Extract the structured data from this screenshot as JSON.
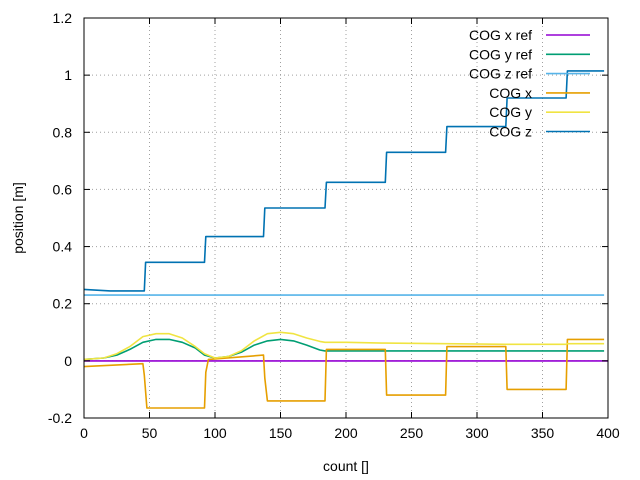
{
  "chart_data": {
    "type": "line",
    "title": "",
    "xlabel": "count []",
    "ylabel": "position [m]",
    "xlim": [
      0,
      400
    ],
    "ylim": [
      -0.2,
      1.2
    ],
    "grid": true,
    "legend_position": "top-right",
    "x_ticks": [
      "0",
      "50",
      "100",
      "150",
      "200",
      "250",
      "300",
      "350",
      "400"
    ],
    "y_ticks": [
      "-0.2",
      "0",
      "0.2",
      "0.4",
      "0.6",
      "0.8",
      "1",
      "1.2"
    ],
    "series": [
      {
        "name": "COG x ref",
        "color": "#9400d3",
        "x": [
          0,
          400
        ],
        "y": [
          0,
          0
        ]
      },
      {
        "name": "COG y ref",
        "color": "#009e73",
        "x": [
          0,
          15,
          25,
          35,
          45,
          55,
          65,
          75,
          85,
          92,
          100,
          110,
          120,
          130,
          140,
          150,
          160,
          170,
          180,
          184,
          200,
          250,
          300,
          350,
          397
        ],
        "y": [
          0.005,
          0.01,
          0.02,
          0.04,
          0.065,
          0.075,
          0.075,
          0.065,
          0.045,
          0.02,
          0.01,
          0.015,
          0.03,
          0.055,
          0.07,
          0.075,
          0.07,
          0.055,
          0.038,
          0.035,
          0.035,
          0.035,
          0.035,
          0.035,
          0.035
        ]
      },
      {
        "name": "COG z ref",
        "color": "#56b4e9",
        "x": [
          0,
          397
        ],
        "y": [
          0.23,
          0.23
        ]
      },
      {
        "name": "COG x",
        "color": "#e69f00",
        "x": [
          0,
          45,
          46,
          48,
          92,
          93,
          95,
          137,
          138,
          140,
          184,
          185,
          230,
          231,
          276,
          277,
          322,
          323,
          368,
          369,
          397
        ],
        "y": [
          -0.02,
          -0.01,
          -0.05,
          -0.165,
          -0.165,
          -0.04,
          0.005,
          0.02,
          -0.06,
          -0.14,
          -0.14,
          0.04,
          0.04,
          -0.12,
          -0.12,
          0.05,
          0.05,
          -0.1,
          -0.1,
          0.075,
          0.075
        ]
      },
      {
        "name": "COG y",
        "color": "#f0e442",
        "x": [
          0,
          15,
          25,
          35,
          45,
          55,
          65,
          75,
          85,
          92,
          100,
          110,
          120,
          130,
          140,
          150,
          160,
          170,
          180,
          184,
          200,
          230,
          276,
          322,
          368,
          369,
          397
        ],
        "y": [
          0.005,
          0.01,
          0.025,
          0.05,
          0.085,
          0.095,
          0.095,
          0.08,
          0.05,
          0.025,
          0.01,
          0.015,
          0.035,
          0.07,
          0.095,
          0.1,
          0.095,
          0.08,
          0.068,
          0.065,
          0.065,
          0.062,
          0.06,
          0.058,
          0.058,
          0.06,
          0.06
        ]
      },
      {
        "name": "COG z",
        "color": "#0072b2",
        "x": [
          0,
          20,
          46,
          47,
          92,
          93,
          137,
          138,
          184,
          185,
          230,
          231,
          276,
          277,
          322,
          323,
          368,
          369,
          397
        ],
        "y": [
          0.25,
          0.245,
          0.245,
          0.345,
          0.345,
          0.435,
          0.435,
          0.535,
          0.535,
          0.625,
          0.625,
          0.73,
          0.73,
          0.82,
          0.82,
          0.92,
          0.92,
          1.015,
          1.015
        ]
      }
    ]
  }
}
